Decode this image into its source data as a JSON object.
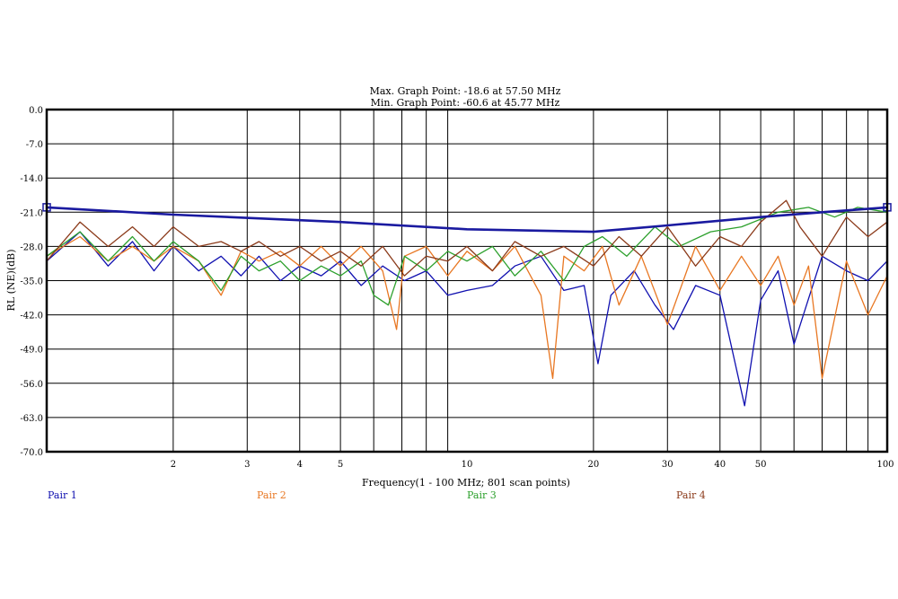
{
  "chart_data": {
    "type": "line",
    "header_max": "Max. Graph Point: -18.6 at 57.50 MHz",
    "header_min": "Min. Graph Point: -60.6 at 45.77 MHz",
    "ylabel": "RL (NE)(dB)",
    "xlabel": "Frequency(1 - 100 MHz; 801 scan points)",
    "x_scale": "log",
    "xlim": [
      1,
      100
    ],
    "ylim": [
      -70,
      0
    ],
    "y_ticks": [
      "0.0",
      "-7.0",
      "-14.0",
      "-21.0",
      "-28.0",
      "-35.0",
      "-42.0",
      "-49.0",
      "-56.0",
      "-63.0",
      "-70.0"
    ],
    "y_tick_values": [
      0,
      -7,
      -14,
      -21,
      -28,
      -35,
      -42,
      -49,
      -56,
      -63,
      -70
    ],
    "x_tick_labels": [
      "2",
      "3",
      "4",
      "5",
      "10",
      "20",
      "30",
      "40",
      "50",
      "100"
    ],
    "x_tick_values": [
      2,
      3,
      4,
      5,
      10,
      20,
      30,
      40,
      50,
      100
    ],
    "grid": true,
    "legend_position": "bottom",
    "limit_line": {
      "color": "#1a1aa0",
      "x": [
        1,
        2,
        5,
        10,
        20,
        30,
        50,
        70,
        100
      ],
      "y": [
        -20.0,
        -21.5,
        -23.0,
        -24.5,
        -25.0,
        -23.7,
        -22.0,
        -21.0,
        -20.0
      ]
    },
    "series": [
      {
        "name": "Pair 1",
        "color": "#1010b0",
        "x": [
          1,
          1.2,
          1.4,
          1.6,
          1.8,
          2.0,
          2.3,
          2.6,
          2.9,
          3.2,
          3.6,
          4.0,
          4.5,
          5.0,
          5.6,
          6.3,
          7.1,
          8.0,
          9.0,
          10,
          11.5,
          13,
          15,
          17,
          19,
          20.5,
          22,
          25,
          28,
          31,
          35,
          40,
          45.77,
          50,
          55,
          60,
          70,
          80,
          90,
          100
        ],
        "y": [
          -31,
          -25,
          -32,
          -27,
          -33,
          -28,
          -33,
          -30,
          -34,
          -30,
          -35,
          -32,
          -34,
          -31,
          -36,
          -32,
          -35,
          -33,
          -38,
          -37,
          -36,
          -32,
          -30,
          -37,
          -36,
          -52,
          -38,
          -33,
          -40,
          -45,
          -36,
          -38,
          -60.6,
          -39,
          -33,
          -48,
          -30,
          -33,
          -35,
          -31
        ]
      },
      {
        "name": "Pair 2",
        "color": "#e87722",
        "x": [
          1,
          1.2,
          1.4,
          1.6,
          1.8,
          2.0,
          2.3,
          2.6,
          2.9,
          3.2,
          3.6,
          4.0,
          4.5,
          5.0,
          5.6,
          6.3,
          6.8,
          7.1,
          8.0,
          9.0,
          10,
          11.5,
          13,
          15,
          16,
          17,
          19,
          21,
          23,
          26,
          30,
          35,
          40,
          45,
          50,
          55,
          60,
          65,
          70,
          80,
          90,
          100
        ],
        "y": [
          -30,
          -26,
          -31,
          -28,
          -31,
          -28,
          -31,
          -38,
          -29,
          -31,
          -29,
          -32,
          -28,
          -32,
          -28,
          -33,
          -45,
          -30,
          -28,
          -34,
          -29,
          -33,
          -28,
          -38,
          -55,
          -30,
          -33,
          -28,
          -40,
          -30,
          -44,
          -28,
          -37,
          -30,
          -36,
          -30,
          -40,
          -32,
          -55,
          -31,
          -42,
          -34
        ]
      },
      {
        "name": "Pair 3",
        "color": "#2ca02c",
        "x": [
          1,
          1.2,
          1.4,
          1.6,
          1.8,
          2.0,
          2.3,
          2.6,
          2.9,
          3.2,
          3.6,
          4.0,
          4.5,
          5.0,
          5.6,
          6.0,
          6.5,
          7.1,
          8.0,
          9.0,
          10,
          11.5,
          13,
          15,
          17,
          19,
          21,
          24,
          28,
          32,
          38,
          45,
          55,
          65,
          75,
          85,
          100
        ],
        "y": [
          -30,
          -25,
          -31,
          -26,
          -31,
          -27,
          -31,
          -37,
          -30,
          -33,
          -31,
          -35,
          -32,
          -34,
          -31,
          -38,
          -40,
          -30,
          -33,
          -29,
          -31,
          -28,
          -34,
          -29,
          -35,
          -28,
          -26,
          -30,
          -24,
          -28,
          -25,
          -24,
          -21,
          -20,
          -22,
          -20,
          -21
        ]
      },
      {
        "name": "Pair 4",
        "color": "#8b3a1a",
        "x": [
          1,
          1.2,
          1.4,
          1.6,
          1.8,
          2.0,
          2.3,
          2.6,
          2.9,
          3.2,
          3.6,
          4.0,
          4.5,
          5.0,
          5.6,
          6.3,
          7.1,
          8.0,
          9.0,
          10,
          11.5,
          13,
          15,
          17,
          20,
          23,
          26,
          30,
          35,
          40,
          45,
          50,
          57.5,
          62,
          70,
          80,
          90,
          100
        ],
        "y": [
          -31,
          -23,
          -28,
          -24,
          -28,
          -24,
          -28,
          -27,
          -29,
          -27,
          -30,
          -28,
          -31,
          -29,
          -32,
          -28,
          -34,
          -30,
          -31,
          -28,
          -33,
          -27,
          -30,
          -28,
          -32,
          -26,
          -30,
          -24,
          -32,
          -26,
          -28,
          -23,
          -18.6,
          -24,
          -30,
          -22,
          -26,
          -23
        ]
      }
    ]
  }
}
